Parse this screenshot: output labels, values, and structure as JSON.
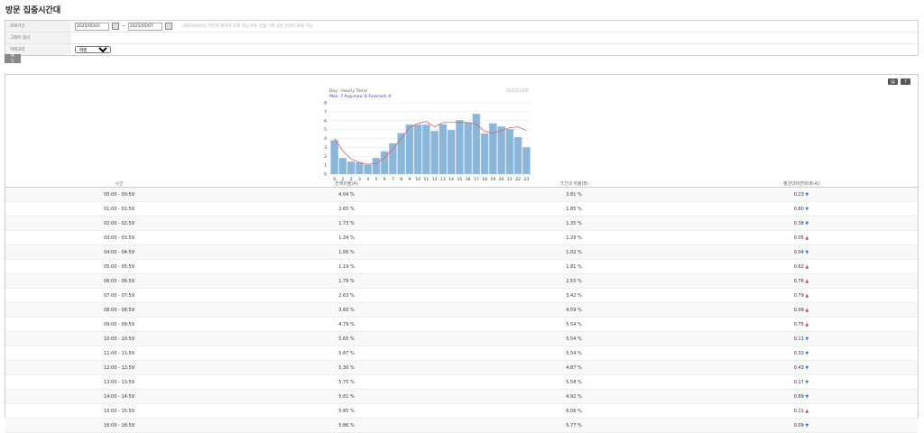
{
  "title": "방문 집중시간대",
  "form": {
    "period_label": "조회기간",
    "start_date": "2025/05/01",
    "end_date": "2025/05/07",
    "separator": "~",
    "hint": "- 2010/01/01 부터의 데이터 조회 가능하며, 당일 기준 2일 전까지 조회 가능",
    "graph_label": "그래프 형식",
    "category_label": "카테고리",
    "category_value": "여행",
    "confirm": "확인"
  },
  "toolbar": {
    "save_icon": "save-icon",
    "help": "?"
  },
  "chart_data": {
    "type": "bar",
    "title": "Day : Hourly Trend",
    "subtitle": "Max: 7   Avg.max: 6   Forecast: 0",
    "watermark": "DLOGGER",
    "categories": [
      "0",
      "1",
      "2",
      "3",
      "4",
      "5",
      "6",
      "7",
      "8",
      "9",
      "10",
      "11",
      "12",
      "13",
      "14",
      "15",
      "16",
      "17",
      "18",
      "19",
      "20",
      "21",
      "22",
      "23"
    ],
    "values": [
      3.8,
      1.8,
      1.4,
      1.3,
      1.05,
      1.8,
      2.55,
      3.45,
      4.6,
      5.55,
      5.55,
      5.55,
      4.85,
      5.6,
      4.95,
      6.05,
      5.8,
      6.75,
      4.55,
      5.7,
      5.35,
      5.05,
      4.15,
      3.0
    ],
    "trend": [
      4.0,
      2.6,
      1.7,
      1.3,
      1.1,
      1.2,
      1.8,
      2.8,
      4.0,
      5.2,
      5.7,
      5.9,
      5.3,
      5.8,
      5.8,
      5.8,
      5.8,
      5.6,
      4.8,
      4.6,
      4.9,
      5.2,
      5.3,
      4.9
    ],
    "ylim": [
      0,
      8
    ],
    "yticks": [
      "0",
      "1",
      "2",
      "3",
      "4",
      "5",
      "6",
      "7",
      "8"
    ],
    "grid": true,
    "bar_color": "#8ab6da",
    "trend_color": "#e06060"
  },
  "table": {
    "headers": [
      "시간",
      "전체비율(A)",
      "기간내 비율(B)",
      "평균대비변화(B-A)"
    ],
    "rows": [
      [
        "00:00 - 00:59",
        "4.04 %",
        "3.81 %",
        "0.23",
        "down"
      ],
      [
        "01:00 - 01:59",
        "2.65 %",
        "1.85 %",
        "0.80",
        "down"
      ],
      [
        "02:00 - 02:59",
        "1.73 %",
        "1.35 %",
        "0.38",
        "down"
      ],
      [
        "03:00 - 03:59",
        "1.24 %",
        "1.29 %",
        "0.05",
        "up"
      ],
      [
        "04:00 - 04:59",
        "1.06 %",
        "1.02 %",
        "0.04",
        "down"
      ],
      [
        "05:00 - 05:59",
        "1.19 %",
        "1.81 %",
        "0.62",
        "up"
      ],
      [
        "06:00 - 06:59",
        "1.79 %",
        "2.55 %",
        "0.76",
        "up"
      ],
      [
        "07:00 - 07:59",
        "2.63 %",
        "3.42 %",
        "0.79",
        "up"
      ],
      [
        "08:00 - 08:59",
        "3.60 %",
        "4.59 %",
        "0.99",
        "up"
      ],
      [
        "09:00 - 09:59",
        "4.79 %",
        "5.54 %",
        "0.75",
        "up"
      ],
      [
        "10:00 - 10:59",
        "5.65 %",
        "5.54 %",
        "0.11",
        "down"
      ],
      [
        "11:00 - 11:59",
        "5.87 %",
        "5.54 %",
        "0.33",
        "down"
      ],
      [
        "12:00 - 12:59",
        "5.30 %",
        "4.87 %",
        "0.43",
        "down"
      ],
      [
        "13:00 - 13:59",
        "5.75 %",
        "5.58 %",
        "0.17",
        "down"
      ],
      [
        "14:00 - 14:59",
        "5.81 %",
        "4.92 %",
        "0.89",
        "down"
      ],
      [
        "15:00 - 15:59",
        "5.85 %",
        "6.06 %",
        "0.21",
        "up"
      ],
      [
        "16:00 - 16:59",
        "5.86 %",
        "5.77 %",
        "0.09",
        "down"
      ]
    ]
  }
}
